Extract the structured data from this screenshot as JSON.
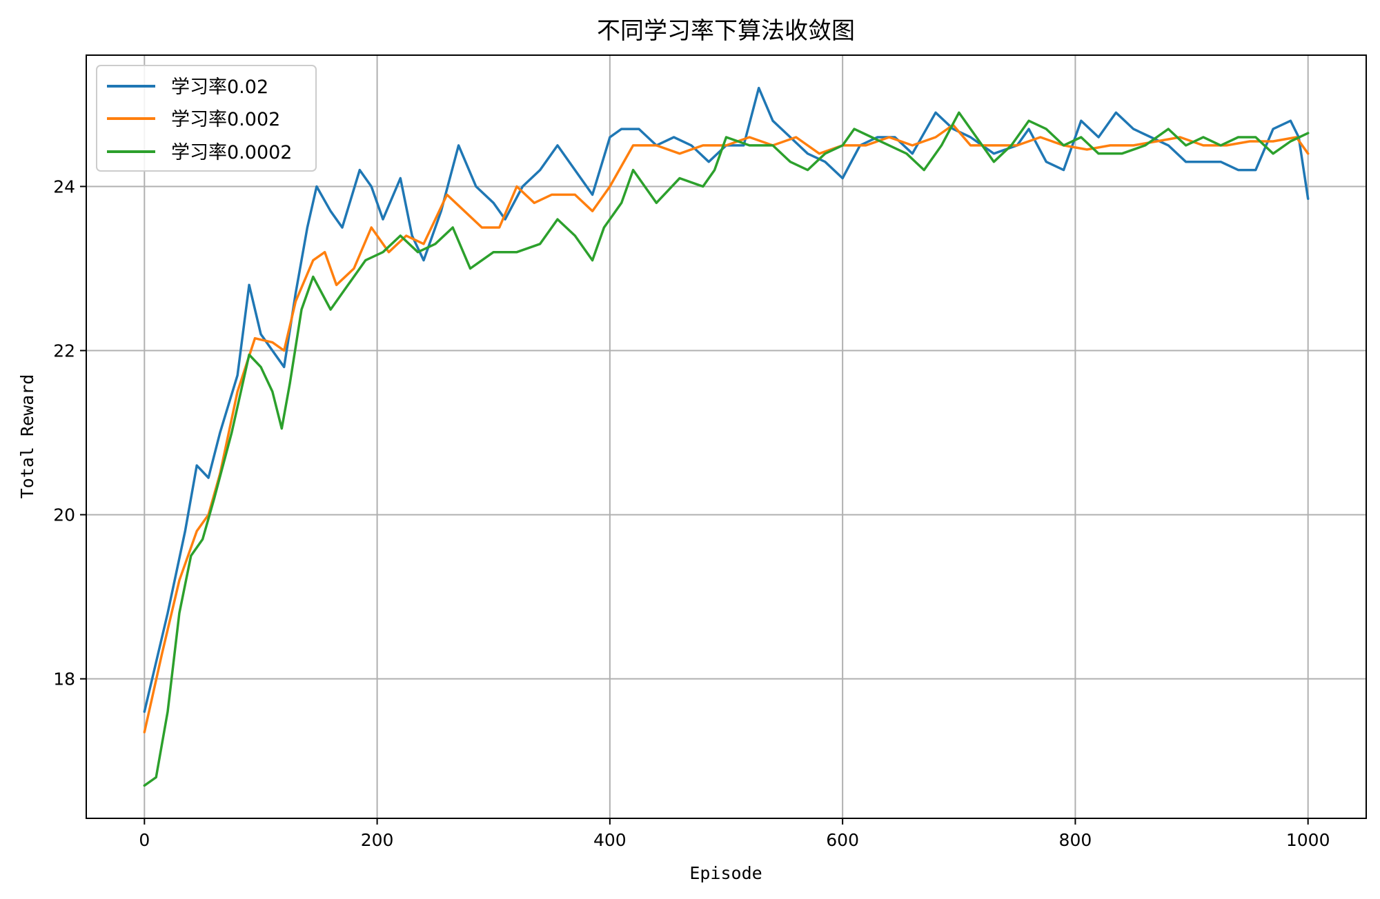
{
  "chart_data": {
    "type": "line",
    "title": "不同学习率下算法收敛图",
    "xlabel": "Episode",
    "ylabel": "Total Reward",
    "xlim": [
      -50,
      1050
    ],
    "ylim": [
      16.3,
      25.6
    ],
    "xticks": [
      0,
      200,
      400,
      600,
      800,
      1000
    ],
    "yticks": [
      18,
      20,
      22,
      24
    ],
    "grid": true,
    "legend_position": "top-left",
    "series": [
      {
        "name": "学习率0.02",
        "color": "#1f77b4",
        "points": [
          [
            0,
            17.6
          ],
          [
            20,
            18.8
          ],
          [
            35,
            19.8
          ],
          [
            45,
            20.6
          ],
          [
            55,
            20.45
          ],
          [
            65,
            21.0
          ],
          [
            80,
            21.7
          ],
          [
            90,
            22.8
          ],
          [
            100,
            22.2
          ],
          [
            110,
            22.0
          ],
          [
            120,
            21.8
          ],
          [
            130,
            22.7
          ],
          [
            140,
            23.5
          ],
          [
            148,
            24.0
          ],
          [
            160,
            23.7
          ],
          [
            170,
            23.5
          ],
          [
            185,
            24.2
          ],
          [
            195,
            24.0
          ],
          [
            205,
            23.6
          ],
          [
            220,
            24.1
          ],
          [
            230,
            23.4
          ],
          [
            240,
            23.1
          ],
          [
            255,
            23.7
          ],
          [
            270,
            24.5
          ],
          [
            285,
            24.0
          ],
          [
            300,
            23.8
          ],
          [
            310,
            23.6
          ],
          [
            325,
            24.0
          ],
          [
            340,
            24.2
          ],
          [
            355,
            24.5
          ],
          [
            370,
            24.2
          ],
          [
            385,
            23.9
          ],
          [
            400,
            24.6
          ],
          [
            410,
            24.7
          ],
          [
            425,
            24.7
          ],
          [
            440,
            24.5
          ],
          [
            455,
            24.6
          ],
          [
            470,
            24.5
          ],
          [
            485,
            24.3
          ],
          [
            500,
            24.5
          ],
          [
            515,
            24.5
          ],
          [
            528,
            25.2
          ],
          [
            540,
            24.8
          ],
          [
            555,
            24.6
          ],
          [
            570,
            24.4
          ],
          [
            585,
            24.3
          ],
          [
            600,
            24.1
          ],
          [
            615,
            24.5
          ],
          [
            630,
            24.6
          ],
          [
            645,
            24.6
          ],
          [
            660,
            24.4
          ],
          [
            680,
            24.9
          ],
          [
            695,
            24.7
          ],
          [
            710,
            24.6
          ],
          [
            730,
            24.4
          ],
          [
            750,
            24.5
          ],
          [
            760,
            24.7
          ],
          [
            775,
            24.3
          ],
          [
            790,
            24.2
          ],
          [
            805,
            24.8
          ],
          [
            820,
            24.6
          ],
          [
            835,
            24.9
          ],
          [
            850,
            24.7
          ],
          [
            865,
            24.6
          ],
          [
            880,
            24.5
          ],
          [
            895,
            24.3
          ],
          [
            910,
            24.3
          ],
          [
            925,
            24.3
          ],
          [
            940,
            24.2
          ],
          [
            955,
            24.2
          ],
          [
            970,
            24.7
          ],
          [
            985,
            24.8
          ],
          [
            992,
            24.6
          ],
          [
            1000,
            23.85
          ]
        ]
      },
      {
        "name": "学习率0.002",
        "color": "#ff7f0e",
        "points": [
          [
            0,
            17.35
          ],
          [
            15,
            18.3
          ],
          [
            30,
            19.2
          ],
          [
            45,
            19.8
          ],
          [
            55,
            20.0
          ],
          [
            65,
            20.5
          ],
          [
            80,
            21.5
          ],
          [
            95,
            22.15
          ],
          [
            110,
            22.1
          ],
          [
            120,
            22.0
          ],
          [
            130,
            22.6
          ],
          [
            145,
            23.1
          ],
          [
            155,
            23.2
          ],
          [
            165,
            22.8
          ],
          [
            180,
            23.0
          ],
          [
            195,
            23.5
          ],
          [
            210,
            23.2
          ],
          [
            225,
            23.4
          ],
          [
            240,
            23.3
          ],
          [
            260,
            23.9
          ],
          [
            275,
            23.7
          ],
          [
            290,
            23.5
          ],
          [
            305,
            23.5
          ],
          [
            320,
            24.0
          ],
          [
            335,
            23.8
          ],
          [
            350,
            23.9
          ],
          [
            370,
            23.9
          ],
          [
            385,
            23.7
          ],
          [
            400,
            24.0
          ],
          [
            420,
            24.5
          ],
          [
            440,
            24.5
          ],
          [
            460,
            24.4
          ],
          [
            480,
            24.5
          ],
          [
            500,
            24.5
          ],
          [
            520,
            24.6
          ],
          [
            540,
            24.5
          ],
          [
            560,
            24.6
          ],
          [
            580,
            24.4
          ],
          [
            600,
            24.5
          ],
          [
            620,
            24.5
          ],
          [
            640,
            24.6
          ],
          [
            660,
            24.5
          ],
          [
            680,
            24.6
          ],
          [
            695,
            24.75
          ],
          [
            710,
            24.5
          ],
          [
            730,
            24.5
          ],
          [
            750,
            24.5
          ],
          [
            770,
            24.6
          ],
          [
            790,
            24.5
          ],
          [
            810,
            24.45
          ],
          [
            830,
            24.5
          ],
          [
            850,
            24.5
          ],
          [
            870,
            24.55
          ],
          [
            890,
            24.6
          ],
          [
            910,
            24.5
          ],
          [
            930,
            24.5
          ],
          [
            950,
            24.55
          ],
          [
            970,
            24.55
          ],
          [
            990,
            24.6
          ],
          [
            1000,
            24.4
          ]
        ]
      },
      {
        "name": "学习率0.0002",
        "color": "#2ca02c",
        "points": [
          [
            0,
            16.7
          ],
          [
            10,
            16.8
          ],
          [
            20,
            17.6
          ],
          [
            30,
            18.8
          ],
          [
            40,
            19.5
          ],
          [
            50,
            19.7
          ],
          [
            60,
            20.2
          ],
          [
            75,
            21.0
          ],
          [
            90,
            21.95
          ],
          [
            100,
            21.8
          ],
          [
            110,
            21.5
          ],
          [
            118,
            21.05
          ],
          [
            125,
            21.6
          ],
          [
            135,
            22.5
          ],
          [
            145,
            22.9
          ],
          [
            160,
            22.5
          ],
          [
            175,
            22.8
          ],
          [
            190,
            23.1
          ],
          [
            205,
            23.2
          ],
          [
            220,
            23.4
          ],
          [
            235,
            23.2
          ],
          [
            250,
            23.3
          ],
          [
            265,
            23.5
          ],
          [
            280,
            23.0
          ],
          [
            300,
            23.2
          ],
          [
            320,
            23.2
          ],
          [
            340,
            23.3
          ],
          [
            355,
            23.6
          ],
          [
            370,
            23.4
          ],
          [
            385,
            23.1
          ],
          [
            395,
            23.5
          ],
          [
            410,
            23.8
          ],
          [
            420,
            24.2
          ],
          [
            440,
            23.8
          ],
          [
            460,
            24.1
          ],
          [
            480,
            24.0
          ],
          [
            490,
            24.2
          ],
          [
            500,
            24.6
          ],
          [
            520,
            24.5
          ],
          [
            540,
            24.5
          ],
          [
            555,
            24.3
          ],
          [
            570,
            24.2
          ],
          [
            585,
            24.4
          ],
          [
            600,
            24.5
          ],
          [
            610,
            24.7
          ],
          [
            625,
            24.6
          ],
          [
            640,
            24.5
          ],
          [
            655,
            24.4
          ],
          [
            670,
            24.2
          ],
          [
            685,
            24.5
          ],
          [
            700,
            24.9
          ],
          [
            715,
            24.6
          ],
          [
            730,
            24.3
          ],
          [
            745,
            24.5
          ],
          [
            760,
            24.8
          ],
          [
            775,
            24.7
          ],
          [
            790,
            24.5
          ],
          [
            805,
            24.6
          ],
          [
            820,
            24.4
          ],
          [
            840,
            24.4
          ],
          [
            860,
            24.5
          ],
          [
            880,
            24.7
          ],
          [
            895,
            24.5
          ],
          [
            910,
            24.6
          ],
          [
            925,
            24.5
          ],
          [
            940,
            24.6
          ],
          [
            955,
            24.6
          ],
          [
            970,
            24.4
          ],
          [
            985,
            24.55
          ],
          [
            1000,
            24.65
          ]
        ]
      }
    ]
  }
}
